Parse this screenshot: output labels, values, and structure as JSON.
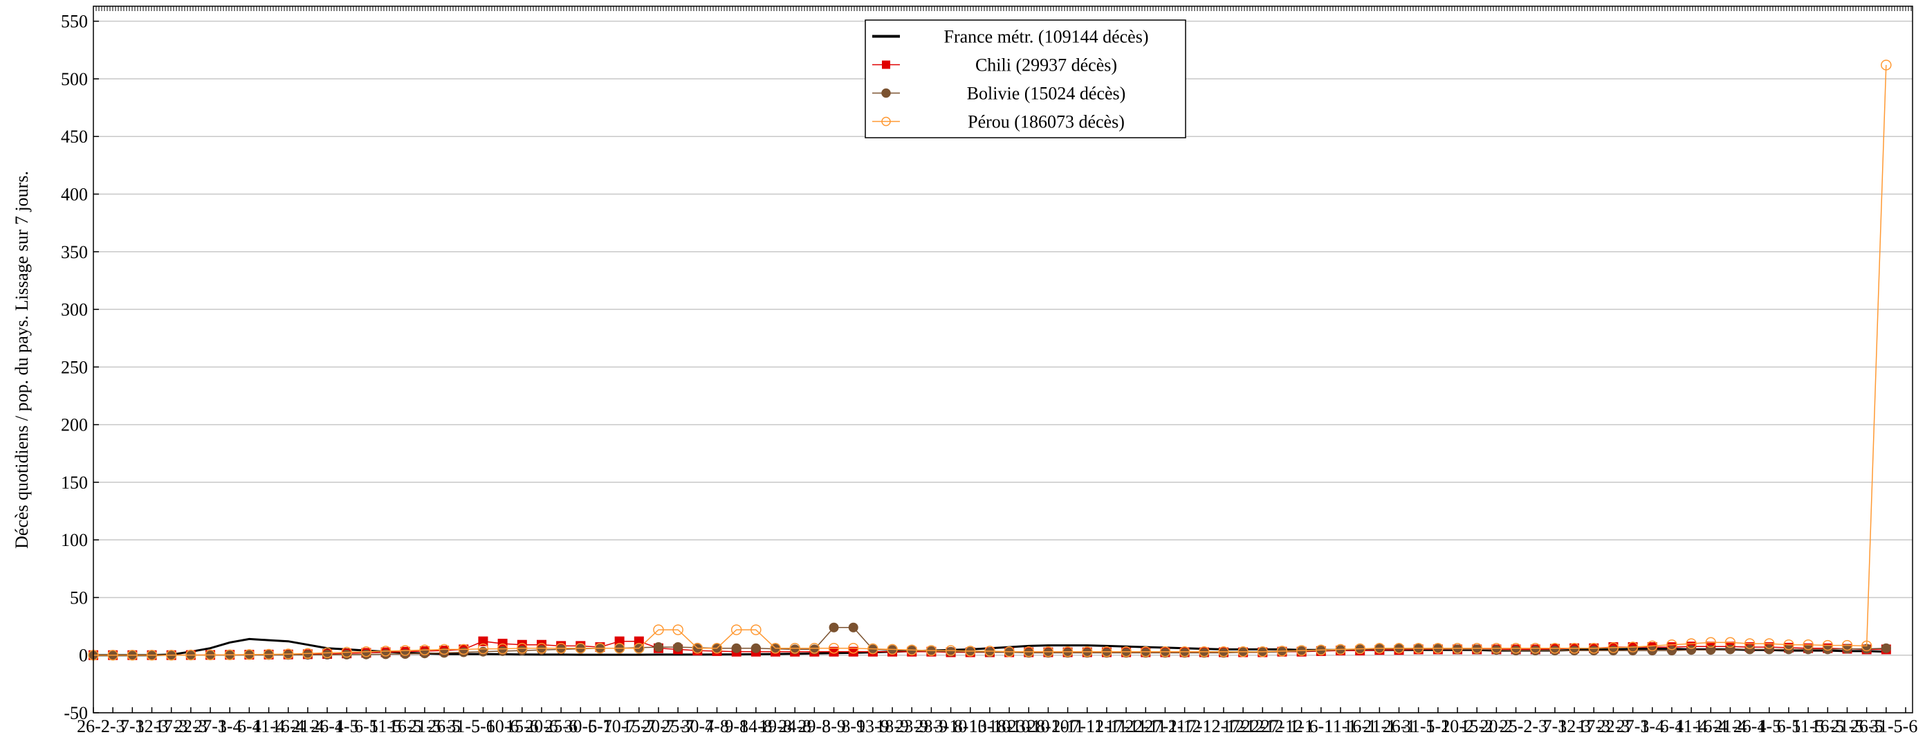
{
  "chart_data": {
    "type": "line",
    "y_label": "Décès quotidiens / pop. du pays. Lissage sur 7 jours.",
    "categories": [
      "26-2",
      "2-3",
      "7-3",
      "12-3",
      "17-3",
      "22-3",
      "27-3",
      "1-4",
      "6-4",
      "11-4",
      "16-4",
      "21-4",
      "26-4",
      "1-5",
      "6-5",
      "11-5",
      "16-5",
      "21-5",
      "26-5",
      "31-5",
      "5-6",
      "10-6",
      "15-6",
      "20-6",
      "25-6",
      "30-6",
      "5-7",
      "10-7",
      "15-7",
      "20-7",
      "25-7",
      "30-7",
      "4-8",
      "9-8",
      "14-8",
      "19-8",
      "24-8",
      "29-8",
      "3-9",
      "8-9",
      "13-9",
      "18-9",
      "23-9",
      "28-9",
      "3-10",
      "8-10",
      "13-10",
      "18-10",
      "23-10",
      "28-10",
      "2-11",
      "7-11",
      "12-11",
      "17-11",
      "22-11",
      "27-11",
      "2-12",
      "7-12",
      "12-12",
      "17-12",
      "22-12",
      "27-12",
      "1-1",
      "6-1",
      "11-1",
      "16-1",
      "21-1",
      "26-1",
      "31-1",
      "5-2",
      "10-2",
      "15-2",
      "20-2",
      "25-2",
      "2-3",
      "7-3",
      "12-3",
      "17-3",
      "22-3",
      "27-3",
      "1-4",
      "6-4",
      "11-4",
      "16-4",
      "21-4",
      "26-4",
      "1-5",
      "6-5",
      "11-5",
      "16-5",
      "21-5",
      "26-5",
      "31-5",
      "5-6"
    ],
    "series": [
      {
        "name": "France métr. (109144 décès)",
        "color": "#000000",
        "marker": "none",
        "values": [
          0,
          0,
          0,
          0,
          0.5,
          3,
          6,
          11,
          14,
          13,
          12,
          9,
          6,
          5,
          4,
          3,
          2,
          1.5,
          1,
          1,
          1,
          0.8,
          0.6,
          0.5,
          0.5,
          0.4,
          0.4,
          0.4,
          0.4,
          0.5,
          0.5,
          0.5,
          0.6,
          0.7,
          0.8,
          1,
          1.2,
          1.5,
          1.8,
          2,
          2.5,
          3,
          3.5,
          4,
          4.5,
          5,
          6,
          7,
          8,
          8.5,
          8.5,
          8.5,
          8,
          7.5,
          7,
          6.5,
          6,
          5.5,
          5,
          5,
          5,
          5,
          4.5,
          4.5,
          4.5,
          4.5,
          4.5,
          4.5,
          4.5,
          4.5,
          4.5,
          4.5,
          4,
          4,
          4,
          4,
          4.5,
          5,
          5,
          5.5,
          5.5,
          5.5,
          5,
          5,
          5,
          4.5,
          4.5,
          4,
          4,
          4,
          3.5,
          3.5,
          3,
          null
        ]
      },
      {
        "name": "Chili (29937 décès)",
        "color": "#e00000",
        "marker": "square",
        "values": [
          0,
          0,
          0,
          0,
          0,
          0.1,
          0.2,
          0.3,
          0.4,
          0.5,
          0.6,
          0.8,
          1,
          1.5,
          2,
          2.5,
          3,
          3.5,
          4,
          5,
          12,
          10,
          9,
          9,
          8,
          8,
          7,
          12,
          12,
          6,
          5,
          4,
          3.5,
          3,
          3,
          3,
          3,
          3,
          3,
          3,
          3,
          3,
          3,
          3,
          2.5,
          2.5,
          2.5,
          2.5,
          2.5,
          2.5,
          2.5,
          2.5,
          2.5,
          2.5,
          2.5,
          2.5,
          2.5,
          2.5,
          2.5,
          2.5,
          2.5,
          3,
          3,
          3.5,
          4,
          4,
          4.5,
          4.5,
          5,
          5,
          5,
          5,
          5,
          5,
          5,
          5.5,
          6,
          6,
          7,
          7,
          7,
          7,
          7.5,
          7.5,
          7.5,
          7,
          7,
          6.5,
          6,
          6,
          5.5,
          5,
          5,
          null
        ]
      },
      {
        "name": "Bolivie (15024 décès)",
        "color": "#7b5230",
        "marker": "circle",
        "values": [
          0,
          0,
          0,
          0,
          0,
          0,
          0,
          0,
          0.1,
          0.1,
          0.2,
          0.3,
          0.4,
          0.5,
          0.6,
          0.8,
          1,
          1.5,
          2,
          2.5,
          3,
          3.5,
          4,
          4.5,
          5,
          5.5,
          6,
          6,
          6.5,
          7,
          7,
          6.5,
          6,
          6,
          6,
          5.5,
          5,
          5,
          24,
          24,
          5,
          4.5,
          4,
          3.5,
          3,
          3,
          2.5,
          2.5,
          2,
          2,
          2,
          2,
          2,
          2,
          2,
          2,
          2,
          2,
          2,
          2.5,
          2.5,
          3,
          3.5,
          4,
          4.5,
          5,
          5.5,
          5.5,
          5.5,
          5.5,
          5,
          5,
          4.5,
          4,
          4,
          4,
          4,
          4,
          4,
          4,
          4,
          4,
          4.5,
          4.5,
          5,
          5,
          5,
          5,
          5,
          5,
          5.5,
          5.5,
          6,
          null
        ]
      },
      {
        "name": "Pérou (186073 décès)",
        "color": "#ff9933",
        "marker": "open-circle",
        "values": [
          0,
          0,
          0,
          0,
          0,
          0.1,
          0.2,
          0.3,
          0.5,
          0.7,
          1,
          1.5,
          2,
          2.5,
          3,
          3.5,
          4,
          4.5,
          5,
          5,
          5.5,
          5.5,
          6,
          6,
          6,
          6,
          6,
          6,
          6,
          22,
          22,
          6,
          6,
          22,
          22,
          6,
          6,
          6,
          6,
          6,
          5.5,
          5,
          4.5,
          4,
          4,
          3.5,
          3.5,
          3,
          3,
          3,
          3,
          3,
          3,
          3,
          3,
          3,
          3,
          3,
          3,
          3,
          3,
          3.5,
          4,
          4.5,
          5,
          5.5,
          6,
          6,
          6,
          6,
          6,
          6,
          6,
          6,
          6,
          6,
          6,
          6,
          6.5,
          7,
          8,
          9,
          10,
          11,
          11,
          10,
          10,
          9,
          9,
          8.5,
          8.5,
          8,
          512,
          null
        ]
      }
    ],
    "ylim": [
      -50,
      563
    ],
    "yticks": [
      -50,
      0,
      50,
      100,
      150,
      200,
      250,
      300,
      350,
      400,
      450,
      500,
      550
    ],
    "grid": true,
    "legend": "top-center"
  }
}
